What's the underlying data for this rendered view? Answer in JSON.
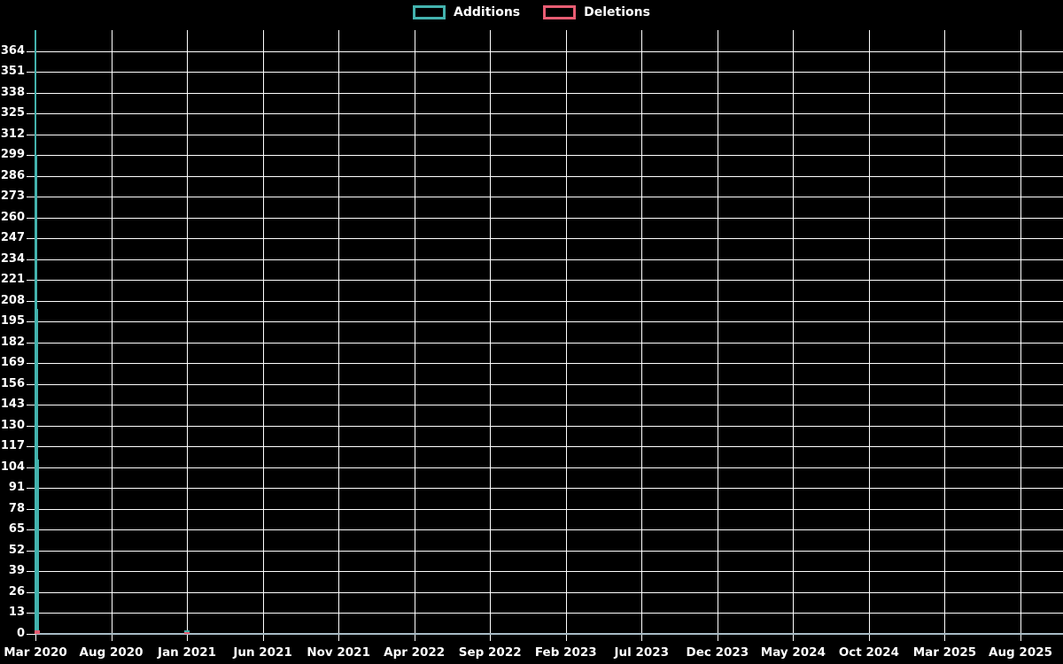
{
  "colors": {
    "background": "#000000",
    "grid": "#ffffff",
    "text": "#ffffff",
    "additions": "#43b3ae",
    "deletions": "#e85d73",
    "baseline": "#a8bcc6"
  },
  "legend": {
    "items": [
      {
        "label": "Additions",
        "color": "#43b3ae"
      },
      {
        "label": "Deletions",
        "color": "#e85d73"
      }
    ]
  },
  "chart_data": {
    "type": "line",
    "title": "",
    "xlabel": "",
    "ylabel": "",
    "background": "#000000",
    "grid": true,
    "legend_position": "top-center",
    "x_tick_labels": [
      "Mar 2020",
      "Aug 2020",
      "Jan 2021",
      "Jun 2021",
      "Nov 2021",
      "Apr 2022",
      "Sep 2022",
      "Feb 2023",
      "Jul 2023",
      "Dec 2023",
      "May 2024",
      "Oct 2024",
      "Mar 2025",
      "Aug 2025"
    ],
    "x_tick_interval_months": 5,
    "xlim_months": [
      0,
      65
    ],
    "y_tick_values": [
      0,
      13,
      26,
      39,
      52,
      65,
      78,
      91,
      104,
      117,
      130,
      143,
      156,
      169,
      182,
      195,
      208,
      221,
      234,
      247,
      260,
      273,
      286,
      299,
      312,
      325,
      338,
      351,
      364
    ],
    "y_tick_step": 13,
    "ylim": [
      0,
      377
    ],
    "series": [
      {
        "name": "Additions",
        "color": "#43b3ae",
        "points": [
          {
            "month": "Mar 2020",
            "t": 0,
            "y": 377
          },
          {
            "month": "Mar 2020",
            "t": 0.05,
            "y": 299
          },
          {
            "month": "Mar 2020",
            "t": 0.1,
            "y": 203
          },
          {
            "month": "Mar 2020",
            "t": 0.15,
            "y": 109
          },
          {
            "month": "Apr 2020",
            "t": 1,
            "y": 0
          },
          {
            "month": "Jan 2021",
            "t": 10,
            "y": 2
          },
          {
            "month": "Feb 2021",
            "t": 11,
            "y": 0
          },
          {
            "month": "Aug 2025",
            "t": 65,
            "y": 0
          }
        ]
      },
      {
        "name": "Deletions",
        "color": "#e85d73",
        "points": [
          {
            "month": "Mar 2020",
            "t": 0,
            "y": 2
          },
          {
            "month": "Apr 2020",
            "t": 1,
            "y": 0
          },
          {
            "month": "Jan 2021",
            "t": 10,
            "y": 1
          },
          {
            "month": "Feb 2021",
            "t": 11,
            "y": 0
          },
          {
            "month": "Aug 2025",
            "t": 65,
            "y": 0
          }
        ]
      }
    ]
  }
}
